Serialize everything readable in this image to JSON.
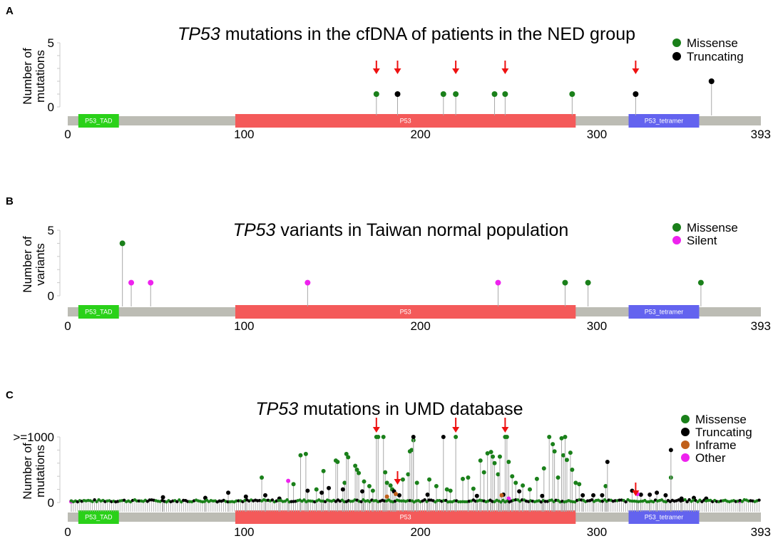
{
  "figure": {
    "panels": [
      {
        "label": "A",
        "title_italic": "TP53",
        "title_rest": " mutations in the cfDNA of patients in the NED group"
      },
      {
        "label": "B",
        "title_italic": "TP53",
        "title_rest": " variants in Taiwan normal population"
      },
      {
        "label": "C",
        "title_italic": "TP53",
        "title_rest": " mutations in UMD database"
      }
    ]
  },
  "colors": {
    "missense": "#1a801a",
    "truncating": "#000000",
    "inframe": "#c0601b",
    "other": "#ee22ee",
    "silent": "#ee22ee",
    "arrow": "#ee1111",
    "backbone": "#bcbcb4",
    "stem": "#a8a8a8",
    "tad": "#2ad119",
    "p53": "#f45a5a",
    "tetramer": "#6363ef"
  },
  "chart_data": [
    {
      "type": "scatter",
      "panel": "A",
      "title": "TP53 mutations in the cfDNA of patients in the NED group",
      "xlabel": "",
      "ylabel": "Number of\nmutations",
      "xlim": [
        0,
        393
      ],
      "xticks": [
        0,
        100,
        200,
        300,
        393
      ],
      "ylim": [
        0,
        5
      ],
      "yticks": [
        "0",
        "5"
      ],
      "domains": [
        {
          "name": "P53_TAD",
          "start": 6,
          "end": 29
        },
        {
          "name": "P53",
          "start": 95,
          "end": 288
        },
        {
          "name": "P53_tetramer",
          "start": 318,
          "end": 358
        }
      ],
      "legend": [
        "Missense",
        "Truncating"
      ],
      "series": [
        {
          "name": "Missense",
          "points": [
            [
              175,
              1
            ],
            [
              213,
              1
            ],
            [
              220,
              1
            ],
            [
              242,
              1
            ],
            [
              248,
              1
            ],
            [
              286,
              1
            ]
          ]
        },
        {
          "name": "Truncating",
          "points": [
            [
              187,
              1
            ],
            [
              322,
              1
            ],
            [
              365,
              2
            ]
          ]
        }
      ],
      "arrows": [
        175,
        187,
        220,
        248,
        322
      ]
    },
    {
      "type": "scatter",
      "panel": "B",
      "title": "TP53 variants in Taiwan normal population",
      "xlabel": "",
      "ylabel": "Number of\nvariants",
      "xlim": [
        0,
        393
      ],
      "xticks": [
        0,
        100,
        200,
        300,
        393
      ],
      "ylim": [
        0,
        5
      ],
      "yticks": [
        "0",
        "5"
      ],
      "domains": [
        {
          "name": "P53_TAD",
          "start": 6,
          "end": 29
        },
        {
          "name": "P53",
          "start": 95,
          "end": 288
        },
        {
          "name": "P53_tetramer",
          "start": 318,
          "end": 358
        }
      ],
      "legend": [
        "Missense",
        "Silent"
      ],
      "series": [
        {
          "name": "Missense",
          "points": [
            [
              31,
              4
            ],
            [
              282,
              1
            ],
            [
              295,
              1
            ],
            [
              359,
              1
            ]
          ]
        },
        {
          "name": "Silent",
          "points": [
            [
              36,
              1
            ],
            [
              47,
              1
            ],
            [
              136,
              1
            ],
            [
              244,
              1
            ]
          ]
        }
      ],
      "arrows": []
    },
    {
      "type": "scatter",
      "panel": "C",
      "title": "TP53 mutations in UMD database",
      "xlabel": "",
      "ylabel": "Number of\nmutations",
      "xlim": [
        0,
        393
      ],
      "xticks": [
        0,
        100,
        200,
        300,
        393
      ],
      "ylim": [
        0,
        1000
      ],
      "yticks": [
        "0",
        ">=1000"
      ],
      "domains": [
        {
          "name": "P53_TAD",
          "start": 6,
          "end": 29
        },
        {
          "name": "P53",
          "start": 95,
          "end": 288
        },
        {
          "name": "P53_tetramer",
          "start": 318,
          "end": 358
        }
      ],
      "legend": [
        "Missense",
        "Truncating",
        "Inframe",
        "Other"
      ],
      "series": [
        {
          "name": "Missense",
          "points": [
            [
              110,
              380
            ],
            [
              128,
              280
            ],
            [
              132,
              720
            ],
            [
              135,
              740
            ],
            [
              141,
              200
            ],
            [
              145,
              480
            ],
            [
              152,
              640
            ],
            [
              153,
              620
            ],
            [
              157,
              300
            ],
            [
              158,
              740
            ],
            [
              159,
              690
            ],
            [
              163,
              560
            ],
            [
              164,
              500
            ],
            [
              165,
              450
            ],
            [
              168,
              320
            ],
            [
              171,
              250
            ],
            [
              173,
              180
            ],
            [
              175,
              1000
            ],
            [
              176,
              1000
            ],
            [
              179,
              1000
            ],
            [
              180,
              460
            ],
            [
              181,
              300
            ],
            [
              183,
              260
            ],
            [
              184,
              200
            ],
            [
              190,
              350
            ],
            [
              193,
              430
            ],
            [
              194,
              780
            ],
            [
              195,
              800
            ],
            [
              196,
              950
            ],
            [
              198,
              300
            ],
            [
              205,
              350
            ],
            [
              209,
              250
            ],
            [
              215,
              200
            ],
            [
              217,
              180
            ],
            [
              220,
              1000
            ],
            [
              224,
              360
            ],
            [
              227,
              380
            ],
            [
              230,
              210
            ],
            [
              234,
              640
            ],
            [
              236,
              460
            ],
            [
              238,
              750
            ],
            [
              240,
              770
            ],
            [
              241,
              700
            ],
            [
              242,
              600
            ],
            [
              244,
              430
            ],
            [
              245,
              700
            ],
            [
              248,
              1000
            ],
            [
              249,
              1000
            ],
            [
              250,
              620
            ],
            [
              252,
              400
            ],
            [
              254,
              300
            ],
            [
              258,
              260
            ],
            [
              262,
              200
            ],
            [
              266,
              360
            ],
            [
              270,
              520
            ],
            [
              273,
              1000
            ],
            [
              275,
              890
            ],
            [
              276,
              780
            ],
            [
              278,
              380
            ],
            [
              280,
              980
            ],
            [
              281,
              720
            ],
            [
              282,
              1000
            ],
            [
              283,
              650
            ],
            [
              285,
              760
            ],
            [
              286,
              500
            ],
            [
              288,
              300
            ],
            [
              290,
              280
            ],
            [
              305,
              250
            ],
            [
              342,
              380
            ]
          ]
        },
        {
          "name": "Truncating",
          "points": [
            [
              54,
              80
            ],
            [
              78,
              70
            ],
            [
              91,
              150
            ],
            [
              101,
              90
            ],
            [
              112,
              110
            ],
            [
              120,
              60
            ],
            [
              136,
              180
            ],
            [
              144,
              150
            ],
            [
              148,
              220
            ],
            [
              156,
              200
            ],
            [
              167,
              170
            ],
            [
              185,
              170
            ],
            [
              188,
              110
            ],
            [
              196,
              1000
            ],
            [
              204,
              120
            ],
            [
              213,
              1000
            ],
            [
              232,
              100
            ],
            [
              247,
              120
            ],
            [
              256,
              170
            ],
            [
              269,
              100
            ],
            [
              292,
              110
            ],
            [
              298,
              110
            ],
            [
              303,
              110
            ],
            [
              306,
              620
            ],
            [
              320,
              180
            ],
            [
              325,
              120
            ],
            [
              330,
              120
            ],
            [
              334,
              150
            ],
            [
              339,
              110
            ],
            [
              342,
              800
            ],
            [
              348,
              60
            ],
            [
              355,
              70
            ],
            [
              362,
              60
            ]
          ]
        },
        {
          "name": "Inframe",
          "points": [
            [
              186,
              130
            ],
            [
              246,
              110
            ],
            [
              181,
              90
            ]
          ]
        },
        {
          "name": "Other",
          "points": [
            [
              125,
              330
            ],
            [
              250,
              60
            ],
            [
              323,
              130
            ],
            [
              381,
              20
            ],
            [
              2,
              15
            ]
          ]
        }
      ],
      "arrows": [
        175,
        187,
        220,
        248,
        322
      ]
    }
  ]
}
